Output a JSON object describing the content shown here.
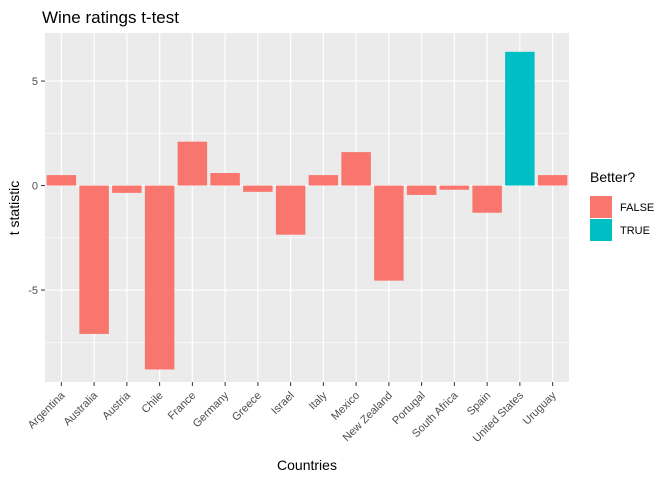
{
  "chart_data": {
    "type": "bar",
    "title": "Wine ratings t-test",
    "xlabel": "Countries",
    "ylabel": "t statistic",
    "categories": [
      "Argentina",
      "Australia",
      "Austria",
      "Chile",
      "France",
      "Germany",
      "Greece",
      "Israel",
      "Italy",
      "Mexico",
      "New Zealand",
      "Portugal",
      "South Africa",
      "Spain",
      "United States",
      "Uruguay"
    ],
    "values": [
      0.5,
      -7.1,
      -0.35,
      -8.8,
      2.1,
      0.6,
      -0.3,
      -2.35,
      0.5,
      1.6,
      -4.55,
      -0.45,
      -0.2,
      -1.3,
      6.4,
      0.5
    ],
    "better": [
      "FALSE",
      "FALSE",
      "FALSE",
      "FALSE",
      "FALSE",
      "FALSE",
      "FALSE",
      "FALSE",
      "FALSE",
      "FALSE",
      "FALSE",
      "FALSE",
      "FALSE",
      "FALSE",
      "TRUE",
      "FALSE"
    ],
    "ylim": [
      -9.4,
      7.3
    ],
    "yticks": [
      -5,
      0,
      5
    ],
    "grid": true,
    "panel_background": "#ebebeb",
    "grid_color": "#ffffff",
    "legend": {
      "title": "Better?",
      "placement": "right",
      "entries": [
        {
          "label": "FALSE",
          "color": "#f8766d"
        },
        {
          "label": "TRUE",
          "color": "#00bfc4"
        }
      ]
    }
  }
}
